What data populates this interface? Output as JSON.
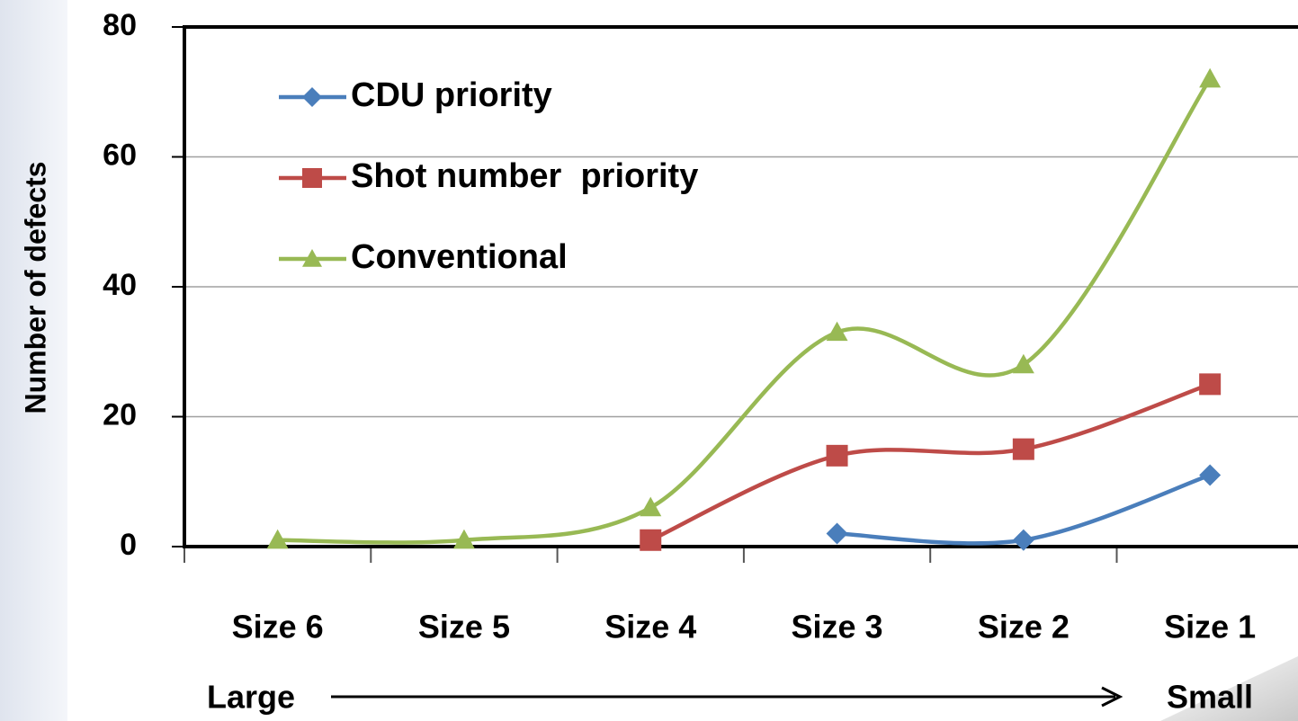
{
  "chart_data": {
    "type": "line",
    "ylabel": "Number of defects",
    "categories": [
      "Size 6",
      "Size 5",
      "Size 4",
      "Size 3",
      "Size 2",
      "Size 1"
    ],
    "series": [
      {
        "name": "CDU priority",
        "color": "#4a7ebb",
        "marker": "diamond",
        "values": [
          null,
          null,
          null,
          2,
          1,
          11
        ]
      },
      {
        "name": "Shot number  priority",
        "color": "#be4b48",
        "marker": "square",
        "values": [
          null,
          null,
          1,
          14,
          15,
          25
        ]
      },
      {
        "name": "Conventional",
        "color": "#98b954",
        "marker": "triangle",
        "values": [
          1,
          1,
          6,
          33,
          28,
          72
        ]
      }
    ],
    "ylim": [
      0,
      80
    ],
    "yticks": [
      0,
      20,
      40,
      60,
      80
    ],
    "grid": true,
    "smooth": true,
    "legend": "upper left",
    "annotations": [
      "Large",
      "Small"
    ]
  }
}
